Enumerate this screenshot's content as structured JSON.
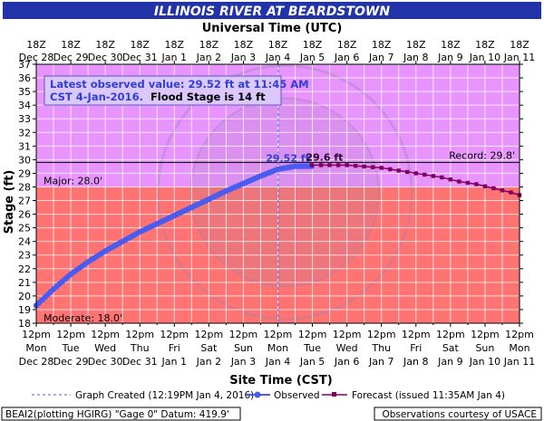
{
  "chart_data": {
    "type": "line",
    "title": "ILLINOIS RIVER AT BEARDSTOWN",
    "top_axis_title": "Universal Time (UTC)",
    "xlabel": "Site Time (CST)",
    "ylabel": "Stage (ft)",
    "ylim": [
      18,
      37
    ],
    "yticks": [
      18,
      19,
      20,
      21,
      22,
      23,
      24,
      25,
      26,
      27,
      28,
      29,
      30,
      31,
      32,
      33,
      34,
      35,
      36,
      37
    ],
    "xlim_days": [
      0,
      14
    ],
    "bottom_ticks": [
      {
        "l1": "12pm",
        "l2": "Mon",
        "l3": "Dec 28"
      },
      {
        "l1": "12pm",
        "l2": "Tue",
        "l3": "Dec 29"
      },
      {
        "l1": "12pm",
        "l2": "Wed",
        "l3": "Dec 30"
      },
      {
        "l1": "12pm",
        "l2": "Thu",
        "l3": "Dec 31"
      },
      {
        "l1": "12pm",
        "l2": "Fri",
        "l3": "Jan 1"
      },
      {
        "l1": "12pm",
        "l2": "Sat",
        "l3": "Jan 2"
      },
      {
        "l1": "12pm",
        "l2": "Sun",
        "l3": "Jan 3"
      },
      {
        "l1": "12pm",
        "l2": "Mon",
        "l3": "Jan 4"
      },
      {
        "l1": "12pm",
        "l2": "Tue",
        "l3": "Jan 5"
      },
      {
        "l1": "12pm",
        "l2": "Wed",
        "l3": "Jan 6"
      },
      {
        "l1": "12pm",
        "l2": "Thu",
        "l3": "Jan 7"
      },
      {
        "l1": "12pm",
        "l2": "Fri",
        "l3": "Jan 8"
      },
      {
        "l1": "12pm",
        "l2": "Sat",
        "l3": "Jan 9"
      },
      {
        "l1": "12pm",
        "l2": "Sun",
        "l3": "Jan 10"
      },
      {
        "l1": "12pm",
        "l2": "Mon",
        "l3": "Jan 11"
      }
    ],
    "top_ticks": [
      {
        "l1": "18Z",
        "l2": "Dec 28"
      },
      {
        "l1": "18Z",
        "l2": "Dec 29"
      },
      {
        "l1": "18Z",
        "l2": "Dec 30"
      },
      {
        "l1": "18Z",
        "l2": "Dec 31"
      },
      {
        "l1": "18Z",
        "l2": "Jan 1"
      },
      {
        "l1": "18Z",
        "l2": "Jan 2"
      },
      {
        "l1": "18Z",
        "l2": "Jan 3"
      },
      {
        "l1": "18Z",
        "l2": "Jan 4"
      },
      {
        "l1": "18Z",
        "l2": "Jan 5"
      },
      {
        "l1": "18Z",
        "l2": "Jan 6"
      },
      {
        "l1": "18Z",
        "l2": "Jan 7"
      },
      {
        "l1": "18Z",
        "l2": "Jan 8"
      },
      {
        "l1": "18Z",
        "l2": "Jan 9"
      },
      {
        "l1": "18Z",
        "l2": "Jan 10"
      },
      {
        "l1": "18Z",
        "l2": "Jan 11"
      }
    ],
    "zones": [
      {
        "name": "Moderate",
        "from": 18,
        "to": 28,
        "color": "#ff7373"
      },
      {
        "name": "Major",
        "from": 28,
        "to": 37,
        "color": "#e794ff"
      }
    ],
    "thresholds": [
      {
        "label": "Major: 28.0'",
        "value": 28.0
      },
      {
        "label": "Record: 29.8'",
        "value": 29.8
      },
      {
        "label": "Moderate: 18.0'",
        "value": 18.0
      }
    ],
    "graph_created_day": 7.01,
    "observed": {
      "name": "Observed",
      "color": "#4a5cf0",
      "points": [
        [
          0,
          19.3
        ],
        [
          0.5,
          20.5
        ],
        [
          1,
          21.6
        ],
        [
          1.5,
          22.5
        ],
        [
          2,
          23.3
        ],
        [
          2.5,
          24.0
        ],
        [
          3,
          24.7
        ],
        [
          3.5,
          25.3
        ],
        [
          4,
          25.9
        ],
        [
          4.5,
          26.5
        ],
        [
          5,
          27.1
        ],
        [
          5.5,
          27.7
        ],
        [
          6,
          28.25
        ],
        [
          6.5,
          28.8
        ],
        [
          7,
          29.3
        ],
        [
          7.5,
          29.52
        ],
        [
          7.98,
          29.52
        ]
      ]
    },
    "forecast": {
      "name": "Forecast (issued 11:35AM Jan 4)",
      "color": "#800060",
      "points": [
        [
          7.98,
          29.6
        ],
        [
          8.25,
          29.6
        ],
        [
          8.5,
          29.6
        ],
        [
          8.75,
          29.6
        ],
        [
          9,
          29.6
        ],
        [
          9.25,
          29.55
        ],
        [
          9.5,
          29.5
        ],
        [
          9.75,
          29.45
        ],
        [
          10,
          29.4
        ],
        [
          10.25,
          29.3
        ],
        [
          10.5,
          29.2
        ],
        [
          10.75,
          29.1
        ],
        [
          11,
          29.0
        ],
        [
          11.25,
          28.9
        ],
        [
          11.5,
          28.8
        ],
        [
          11.75,
          28.7
        ],
        [
          12,
          28.55
        ],
        [
          12.25,
          28.4
        ],
        [
          12.5,
          28.3
        ],
        [
          12.75,
          28.2
        ],
        [
          13,
          28.05
        ],
        [
          13.25,
          27.9
        ],
        [
          13.5,
          27.75
        ],
        [
          13.75,
          27.6
        ],
        [
          14,
          27.4
        ]
      ]
    },
    "annotations": {
      "observed_peak": "29.52 ft",
      "forecast_peak": "29.6 ft",
      "info_line1": "Latest observed value: 29.52 ft at 11:45 AM",
      "info_line2a": "CST 4-Jan-2016.",
      "info_line2b": "Flood Stage is 14 ft"
    },
    "legend": {
      "graph_created": "Graph Created (12:19PM Jan 4, 2016)",
      "observed": "Observed",
      "forecast": "Forecast (issued 11:35AM Jan 4)"
    },
    "footer_left": "BEAI2(plotting HGIRG) \"Gage 0\" Datum: 419.9'",
    "footer_right": "Observations courtesy of USACE",
    "grid": true
  }
}
